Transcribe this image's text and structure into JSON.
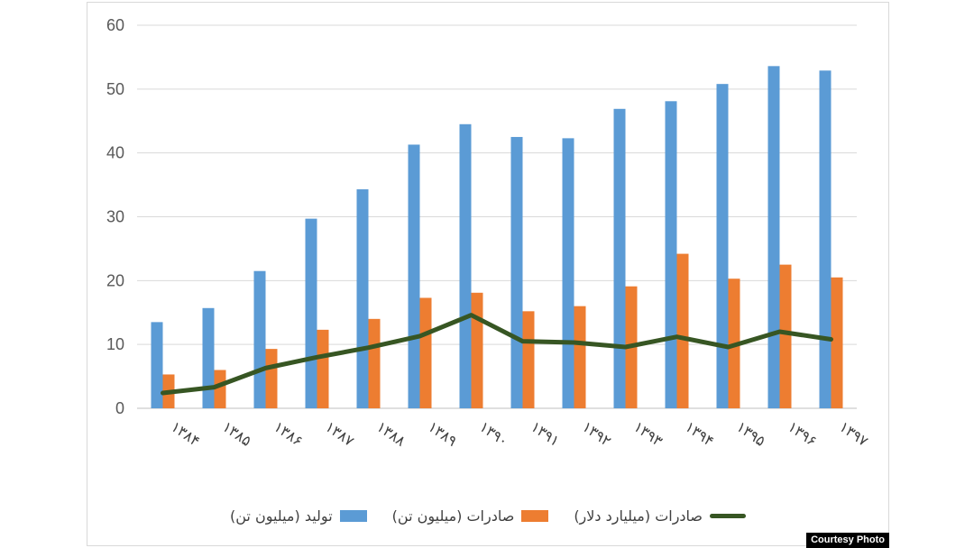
{
  "chart_data": {
    "type": "bar",
    "categories": [
      "۱۳۸۴",
      "۱۳۸۵",
      "۱۳۸۶",
      "۱۳۸۷",
      "۱۳۸۸",
      "۱۳۸۹",
      "۱۳۹۰",
      "۱۳۹۱",
      "۱۳۹۲",
      "۱۳۹۳",
      "۱۳۹۴",
      "۱۳۹۵",
      "۱۳۹۶",
      "۱۳۹۷"
    ],
    "ylim": [
      0,
      60
    ],
    "yticks": [
      0,
      10,
      20,
      30,
      40,
      50,
      60
    ],
    "grid": true,
    "legend_position": "bottom",
    "series": [
      {
        "name": "تولید (میلیون تن)",
        "kind": "bar",
        "color": "#5b9bd5",
        "values": [
          13.5,
          15.7,
          21.5,
          29.7,
          34.3,
          41.3,
          44.5,
          42.5,
          42.3,
          46.9,
          48.1,
          50.8,
          53.6,
          52.9
        ]
      },
      {
        "name": "صادرات (میلیون تن)",
        "kind": "bar",
        "color": "#ed7d31",
        "values": [
          5.3,
          6.0,
          9.3,
          12.3,
          14.0,
          17.3,
          18.1,
          15.2,
          16.0,
          19.1,
          24.2,
          20.3,
          22.5,
          20.5
        ]
      },
      {
        "name": "صادرات (میلیارد دلار)",
        "kind": "line",
        "color": "#375623",
        "values": [
          2.4,
          3.3,
          6.3,
          8.0,
          9.5,
          11.3,
          14.6,
          10.5,
          10.3,
          9.6,
          11.2,
          9.6,
          12.0,
          10.8
        ]
      }
    ]
  },
  "credit": "Courtesy Photo"
}
